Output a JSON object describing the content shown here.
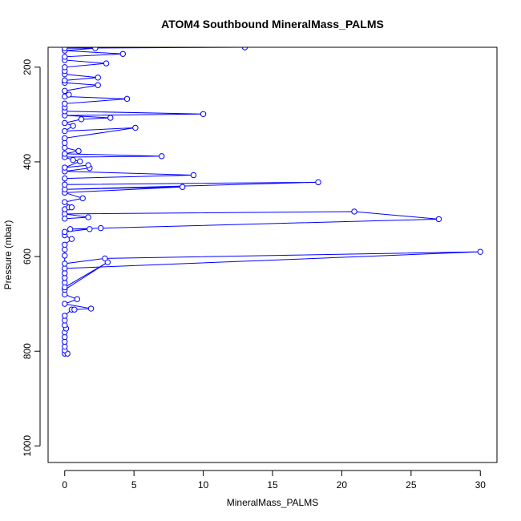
{
  "chart_data": {
    "type": "line",
    "title": "ATOM4 Southbound MineralMass_PALMS",
    "xlabel": "MineralMass_PALMS",
    "ylabel": "Pressure (mbar)",
    "xlim": [
      -1.2,
      31.2
    ],
    "ylim": [
      1035,
      158
    ],
    "y_reversed": true,
    "x_ticks": [
      "0",
      "5",
      "10",
      "15",
      "20",
      "25",
      "30"
    ],
    "y_ticks": [
      "200",
      "400",
      "600",
      "800",
      "1000"
    ],
    "grid": false,
    "legend": "none",
    "color": "#0000ff",
    "series": [
      {
        "values": [
          {
            "x": 0.0,
            "y": 805
          },
          {
            "x": 0.2,
            "y": 805
          },
          {
            "x": 0.0,
            "y": 798
          },
          {
            "x": 0.0,
            "y": 790
          },
          {
            "x": 0.0,
            "y": 780
          },
          {
            "x": 0.0,
            "y": 770
          },
          {
            "x": 0.0,
            "y": 760
          },
          {
            "x": 0.1,
            "y": 752
          },
          {
            "x": 0.0,
            "y": 745
          },
          {
            "x": 0.0,
            "y": 735
          },
          {
            "x": 0.0,
            "y": 725
          },
          {
            "x": 0.5,
            "y": 712
          },
          {
            "x": 0.7,
            "y": 712
          },
          {
            "x": 1.9,
            "y": 710
          },
          {
            "x": 0.0,
            "y": 700
          },
          {
            "x": 0.9,
            "y": 690
          },
          {
            "x": 0.0,
            "y": 680
          },
          {
            "x": 0.0,
            "y": 670
          },
          {
            "x": 3.1,
            "y": 612
          },
          {
            "x": 0.0,
            "y": 665
          },
          {
            "x": 0.0,
            "y": 655
          },
          {
            "x": 0.0,
            "y": 645
          },
          {
            "x": 0.0,
            "y": 635
          },
          {
            "x": 0.0,
            "y": 625
          },
          {
            "x": 30.0,
            "y": 590
          },
          {
            "x": 2.9,
            "y": 604
          },
          {
            "x": 0.0,
            "y": 615
          },
          {
            "x": 0.0,
            "y": 598
          },
          {
            "x": 0.0,
            "y": 585
          },
          {
            "x": 0.0,
            "y": 575
          },
          {
            "x": 0.5,
            "y": 563
          },
          {
            "x": 0.0,
            "y": 555
          },
          {
            "x": 0.0,
            "y": 548
          },
          {
            "x": 1.8,
            "y": 542
          },
          {
            "x": 0.4,
            "y": 542
          },
          {
            "x": 2.6,
            "y": 540
          },
          {
            "x": 27.0,
            "y": 521
          },
          {
            "x": 20.9,
            "y": 505
          },
          {
            "x": 0.0,
            "y": 510
          },
          {
            "x": 1.7,
            "y": 517
          },
          {
            "x": 0.0,
            "y": 520
          },
          {
            "x": 0.0,
            "y": 500
          },
          {
            "x": 0.3,
            "y": 496
          },
          {
            "x": 0.5,
            "y": 496
          },
          {
            "x": 0.0,
            "y": 485
          },
          {
            "x": 1.3,
            "y": 477
          },
          {
            "x": 0.0,
            "y": 465
          },
          {
            "x": 8.5,
            "y": 453
          },
          {
            "x": 0.0,
            "y": 458
          },
          {
            "x": 18.3,
            "y": 443
          },
          {
            "x": 0.0,
            "y": 448
          },
          {
            "x": 0.0,
            "y": 435
          },
          {
            "x": 9.3,
            "y": 428
          },
          {
            "x": 0.0,
            "y": 420
          },
          {
            "x": 1.8,
            "y": 413
          },
          {
            "x": 1.7,
            "y": 407
          },
          {
            "x": 0.0,
            "y": 412
          },
          {
            "x": 1.1,
            "y": 399
          },
          {
            "x": 0.6,
            "y": 396
          },
          {
            "x": 0.0,
            "y": 390
          },
          {
            "x": 7.0,
            "y": 388
          },
          {
            "x": 0.0,
            "y": 383
          },
          {
            "x": 1.0,
            "y": 377
          },
          {
            "x": 0.0,
            "y": 370
          },
          {
            "x": 0.0,
            "y": 360
          },
          {
            "x": 0.0,
            "y": 350
          },
          {
            "x": 5.1,
            "y": 328
          },
          {
            "x": 0.0,
            "y": 335
          },
          {
            "x": 0.6,
            "y": 324
          },
          {
            "x": 0.0,
            "y": 318
          },
          {
            "x": 1.2,
            "y": 310
          },
          {
            "x": 3.3,
            "y": 307
          },
          {
            "x": 0.0,
            "y": 302
          },
          {
            "x": 10.0,
            "y": 299
          },
          {
            "x": 0.0,
            "y": 293
          },
          {
            "x": 0.0,
            "y": 285
          },
          {
            "x": 0.0,
            "y": 277
          },
          {
            "x": 4.5,
            "y": 267
          },
          {
            "x": 0.0,
            "y": 262
          },
          {
            "x": 0.3,
            "y": 258
          },
          {
            "x": 0.0,
            "y": 250
          },
          {
            "x": 2.4,
            "y": 238
          },
          {
            "x": 0.0,
            "y": 233
          },
          {
            "x": 0.0,
            "y": 228
          },
          {
            "x": 2.4,
            "y": 222
          },
          {
            "x": 0.0,
            "y": 215
          },
          {
            "x": 0.0,
            "y": 208
          },
          {
            "x": 0.0,
            "y": 200
          },
          {
            "x": 3.0,
            "y": 192
          },
          {
            "x": 0.0,
            "y": 185
          },
          {
            "x": 0.0,
            "y": 178
          },
          {
            "x": 4.2,
            "y": 172
          },
          {
            "x": 0.0,
            "y": 165
          },
          {
            "x": 2.2,
            "y": 160
          },
          {
            "x": 0.0,
            "y": 160
          },
          {
            "x": 13.0,
            "y": 158
          }
        ]
      }
    ]
  }
}
